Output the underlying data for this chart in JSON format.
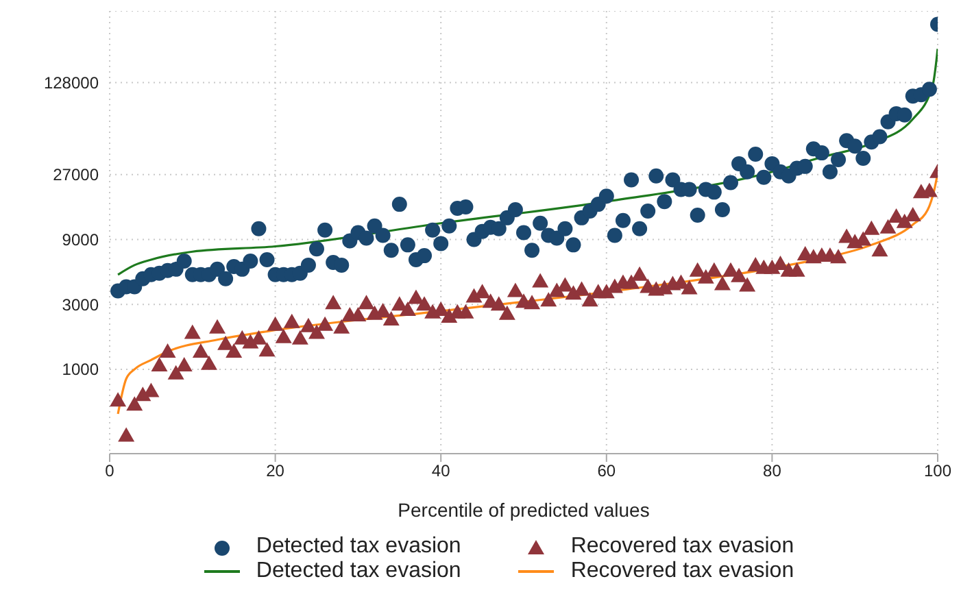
{
  "chart_data": {
    "type": "scatter",
    "xlabel": "Percentile of predicted values",
    "xlim": [
      0,
      100
    ],
    "xticks": [
      0,
      20,
      40,
      60,
      80,
      100
    ],
    "ylim": [
      240,
      430000
    ],
    "yticks": [
      1000,
      3000,
      9000,
      27000,
      128000
    ],
    "log": "y",
    "grid": true,
    "legend": "bottom",
    "series": [
      {
        "name": "Detected tax evasion",
        "marker": "circle",
        "color": "#1a476f",
        "x": [
          1,
          2,
          3,
          4,
          5,
          6,
          7,
          8,
          9,
          10,
          11,
          12,
          13,
          14,
          15,
          16,
          17,
          18,
          19,
          20,
          21,
          22,
          23,
          24,
          25,
          26,
          27,
          28,
          29,
          30,
          31,
          32,
          33,
          34,
          35,
          36,
          37,
          38,
          39,
          40,
          41,
          42,
          43,
          44,
          45,
          46,
          47,
          48,
          49,
          50,
          51,
          52,
          53,
          54,
          55,
          56,
          57,
          58,
          59,
          60,
          61,
          62,
          63,
          64,
          65,
          66,
          67,
          68,
          69,
          70,
          71,
          72,
          73,
          74,
          75,
          76,
          77,
          78,
          79,
          80,
          81,
          82,
          83,
          84,
          85,
          86,
          87,
          88,
          89,
          90,
          91,
          92,
          93,
          94,
          95,
          96,
          97,
          98,
          99,
          100
        ],
        "values": [
          3770,
          4040,
          4040,
          4630,
          4960,
          5080,
          5320,
          5440,
          6240,
          4960,
          4960,
          4960,
          5440,
          4630,
          5690,
          5440,
          6240,
          10800,
          6390,
          4960,
          4960,
          4960,
          5080,
          5830,
          7670,
          10560,
          6100,
          5830,
          8800,
          10090,
          9210,
          11320,
          9640,
          7490,
          16320,
          8210,
          6390,
          6840,
          10560,
          8400,
          11320,
          15240,
          15590,
          9000,
          10320,
          11060,
          10800,
          12980,
          14890,
          10090,
          7490,
          11850,
          9640,
          9210,
          10800,
          8210,
          12980,
          14560,
          16320,
          18730,
          9640,
          12400,
          24640,
          10800,
          14560,
          26390,
          17090,
          24640,
          21000,
          21000,
          13590,
          21000,
          20050,
          14890,
          23540,
          32430,
          28270,
          38060,
          25790,
          32430,
          28270,
          26390,
          30000,
          30970,
          41720,
          38940,
          28270,
          34740,
          47860,
          43670,
          35540,
          46770,
          51260,
          65920,
          75610,
          73930,
          101900,
          104200,
          114200,
          342600
        ]
      },
      {
        "name": "Recovered tax evasion",
        "marker": "triangle",
        "color": "#90353b",
        "x": [
          1,
          2,
          3,
          4,
          5,
          6,
          7,
          8,
          9,
          10,
          11,
          12,
          13,
          14,
          15,
          16,
          17,
          18,
          19,
          20,
          21,
          22,
          23,
          24,
          25,
          26,
          27,
          28,
          29,
          30,
          31,
          32,
          33,
          34,
          35,
          36,
          37,
          38,
          39,
          40,
          41,
          42,
          43,
          44,
          45,
          46,
          47,
          48,
          49,
          50,
          51,
          52,
          53,
          54,
          55,
          56,
          57,
          58,
          59,
          60,
          61,
          62,
          63,
          64,
          65,
          66,
          67,
          68,
          69,
          70,
          71,
          72,
          73,
          74,
          75,
          76,
          77,
          78,
          79,
          80,
          81,
          82,
          83,
          84,
          85,
          86,
          87,
          88,
          89,
          90,
          91,
          92,
          93,
          94,
          95,
          96,
          97,
          98,
          99,
          100
        ],
        "values": [
          591,
          326,
          551,
          648,
          693,
          1070,
          1350,
          934,
          1070,
          1860,
          1350,
          1100,
          2030,
          1540,
          1350,
          1690,
          1580,
          1690,
          1380,
          2130,
          1730,
          2230,
          1690,
          2080,
          1860,
          2130,
          3070,
          2030,
          2500,
          2500,
          3070,
          2560,
          2680,
          2330,
          3000,
          2740,
          3360,
          3000,
          2620,
          2740,
          2440,
          2620,
          2620,
          3440,
          3690,
          3140,
          3000,
          2560,
          3770,
          3140,
          3070,
          4430,
          3210,
          3770,
          4130,
          3610,
          3860,
          3210,
          3690,
          3690,
          4040,
          4330,
          4330,
          4960,
          4040,
          3860,
          3950,
          4230,
          4330,
          3950,
          5320,
          4740,
          5320,
          4230,
          5320,
          4850,
          4130,
          5830,
          5570,
          5570,
          5960,
          5320,
          5320,
          7000,
          6680,
          6840,
          6840,
          6680,
          9420,
          8600,
          9000,
          10800,
          7490,
          11060,
          13280,
          12120,
          13590,
          20050,
          20510,
          28270
        ]
      },
      {
        "name": "Detected tax evasion",
        "type": "line",
        "color": "#1e7a1e",
        "x": [
          1,
          3,
          5,
          10,
          20,
          40,
          60,
          80,
          86,
          92,
          97,
          99.4,
          100
        ],
        "values": [
          4960,
          5830,
          6390,
          7320,
          8010,
          11850,
          17090,
          28270,
          36270,
          45710,
          69000,
          122300,
          226900
        ]
      },
      {
        "name": "Recovered tax evasion",
        "type": "line",
        "color": "#ff8c1a",
        "x": [
          1,
          2,
          3,
          5,
          7,
          13,
          19,
          40,
          61,
          82,
          86,
          92,
          97,
          98.8,
          99.6,
          100
        ],
        "values": [
          470,
          852,
          1000,
          1170,
          1350,
          1650,
          1900,
          2680,
          3770,
          5830,
          6530,
          8210,
          11580,
          14890,
          21000,
          27640
        ]
      }
    ]
  }
}
